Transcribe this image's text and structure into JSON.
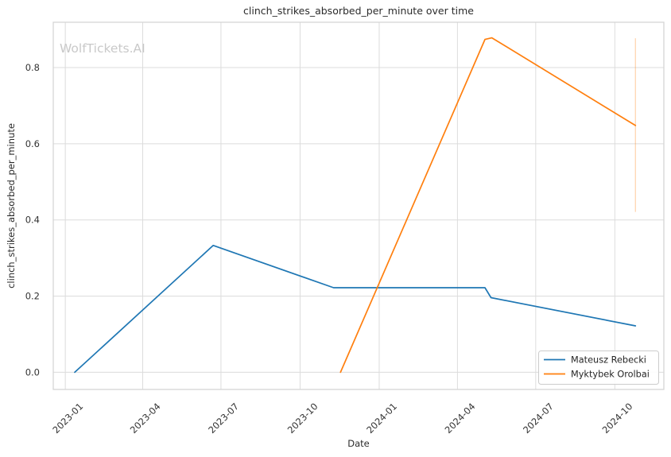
{
  "chart_data": {
    "type": "line",
    "title": "clinch_strikes_absorbed_per_minute over time",
    "xlabel": "Date",
    "ylabel": "clinch_strikes_absorbed_per_minute",
    "watermark": "WolfTickets.AI",
    "grid": true,
    "legend_position": "lower right",
    "colors": {
      "series_blue": "#1f77b4",
      "series_orange": "#ff7f0e",
      "grid": "#dcdcdc",
      "axis_border": "#d4d4d4",
      "text": "#2b2b2b",
      "watermark": "#c9c9c9",
      "legend_border": "#cccccc"
    },
    "x_range": [
      "2022-12-18",
      "2024-11-27"
    ],
    "y_range": [
      -0.045,
      0.919
    ],
    "x_ticks": [
      {
        "label": "2023-01",
        "date": "2023-01-01"
      },
      {
        "label": "2023-04",
        "date": "2023-04-01"
      },
      {
        "label": "2023-07",
        "date": "2023-07-01"
      },
      {
        "label": "2023-10",
        "date": "2023-10-01"
      },
      {
        "label": "2024-01",
        "date": "2024-01-01"
      },
      {
        "label": "2024-04",
        "date": "2024-04-01"
      },
      {
        "label": "2024-07",
        "date": "2024-07-01"
      },
      {
        "label": "2024-10",
        "date": "2024-10-01"
      }
    ],
    "y_ticks": [
      0.0,
      0.2,
      0.4,
      0.6,
      0.8
    ],
    "series": [
      {
        "name": "Mateusz Rebecki",
        "color": "#1f77b4",
        "points": [
          {
            "date": "2023-01-12",
            "value": 0.0
          },
          {
            "date": "2023-06-22",
            "value": 0.333
          },
          {
            "date": "2023-11-09",
            "value": 0.222
          },
          {
            "date": "2024-05-03",
            "value": 0.222
          },
          {
            "date": "2024-05-10",
            "value": 0.196
          },
          {
            "date": "2024-10-25",
            "value": 0.122
          }
        ]
      },
      {
        "name": "Myktybek Orolbai",
        "color": "#ff7f0e",
        "points": [
          {
            "date": "2023-11-17",
            "value": 0.0
          },
          {
            "date": "2024-05-03",
            "value": 0.874
          },
          {
            "date": "2024-05-11",
            "value": 0.878
          },
          {
            "date": "2024-10-25",
            "value": 0.648
          }
        ],
        "error_bar": {
          "date": "2024-10-25",
          "low": 0.421,
          "high": 0.877
        }
      }
    ]
  }
}
